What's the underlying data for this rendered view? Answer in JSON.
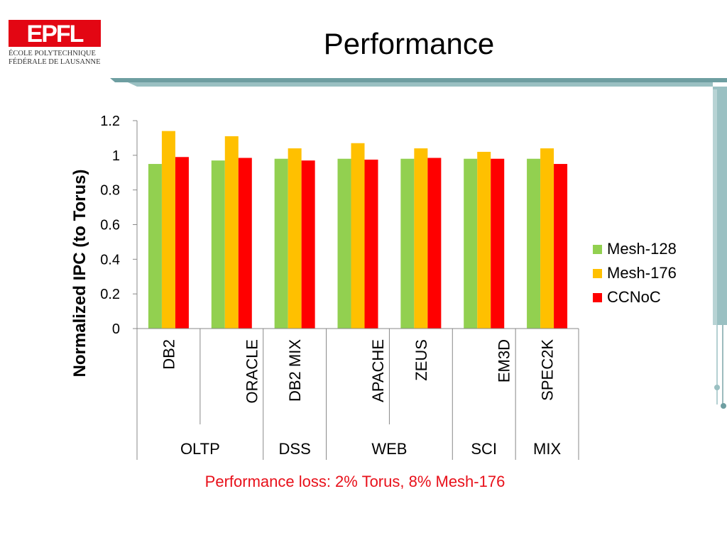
{
  "slide": {
    "title": "Performance",
    "caption": "Performance loss: 2% Torus, 8% Mesh-176"
  },
  "logo": {
    "mark_text": "EPFL",
    "line1": "ÉCOLE POLYTECHNIQUE",
    "line2": "FÉDÉRALE DE LAUSANNE",
    "color": "#e30613"
  },
  "chart_data": {
    "type": "bar",
    "ylabel": "Normalized IPC (to Torus)",
    "ylim": [
      0,
      1.2
    ],
    "yticks": [
      "0",
      "0.2",
      "0.4",
      "0.6",
      "0.8",
      "1",
      "1.2"
    ],
    "categories": [
      "DB2",
      "ORACLE",
      "DB2 MIX",
      "APACHE",
      "ZEUS",
      "EM3D",
      "SPEC2K"
    ],
    "groups": [
      {
        "label": "OLTP",
        "span": 2
      },
      {
        "label": "DSS",
        "span": 1
      },
      {
        "label": "WEB",
        "span": 2
      },
      {
        "label": "SCI",
        "span": 1
      },
      {
        "label": "MIX",
        "span": 1
      }
    ],
    "series": [
      {
        "name": "Mesh-128",
        "color": "#92d050",
        "values": [
          0.95,
          0.97,
          0.98,
          0.98,
          0.98,
          0.98,
          0.98
        ]
      },
      {
        "name": "Mesh-176",
        "color": "#ffc000",
        "values": [
          1.14,
          1.11,
          1.04,
          1.07,
          1.04,
          1.02,
          1.04
        ]
      },
      {
        "name": "CCNoC",
        "color": "#ff0000",
        "values": [
          0.99,
          0.985,
          0.97,
          0.975,
          0.985,
          0.98,
          0.95
        ]
      }
    ],
    "legend": "right",
    "grid": false
  }
}
